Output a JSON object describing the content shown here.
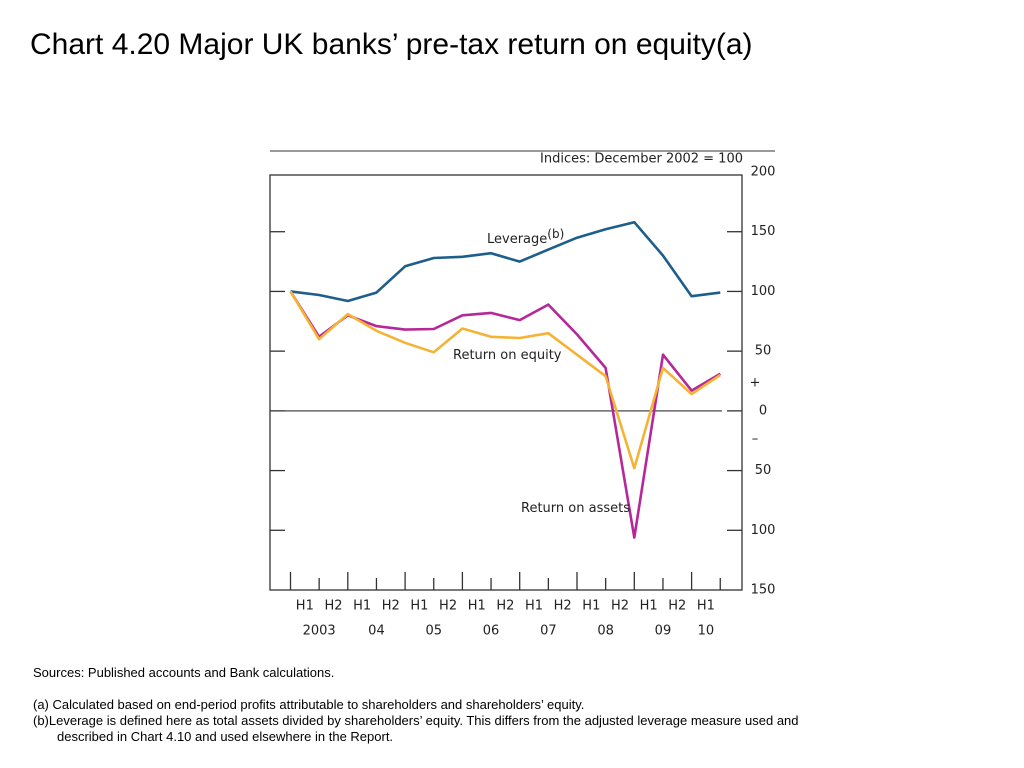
{
  "title": "Chart 4.20  Major UK banks’ pre-tax return on equity(a)",
  "chart_data": {
    "type": "line",
    "subtitle": "Indices:  December 2002 = 100",
    "categories": [
      null,
      "H1",
      "H2",
      "H1",
      "H2",
      "H1",
      "H2",
      "H1",
      "H2",
      "H1",
      "H2",
      "H1",
      "H2",
      "H1",
      "H2",
      "H1"
    ],
    "years": [
      null,
      "2003",
      null,
      "04",
      null,
      "05",
      null,
      "06",
      null,
      "07",
      null,
      "08",
      null,
      "09",
      null,
      "10"
    ],
    "series": [
      {
        "name": "Leverage",
        "name_sup": "(b)",
        "color": "#1d5f8a",
        "values": [
          100,
          97,
          92,
          99,
          121,
          128,
          129,
          132,
          125,
          135,
          145,
          152,
          158,
          130,
          96,
          99
        ]
      },
      {
        "name": "Return on equity",
        "color": "#b5289a",
        "values": [
          100,
          62,
          80,
          71,
          68,
          68.5,
          80,
          82,
          76,
          89,
          64,
          36,
          -106,
          47,
          17,
          31
        ]
      },
      {
        "name": "Return on assets",
        "color": "#f5b335",
        "values": [
          100,
          60,
          81,
          67,
          57,
          49,
          69,
          62,
          61,
          65,
          47,
          29,
          -48,
          36,
          14,
          30
        ]
      }
    ],
    "ylim": [
      -150,
      200
    ],
    "yticks": [
      {
        "value": -150,
        "label": "150"
      },
      {
        "value": -100,
        "label": "100"
      },
      {
        "value": -50,
        "label": "50"
      },
      0,
      50,
      100,
      150,
      200
    ],
    "sign_labels": [
      "+",
      "–"
    ]
  },
  "sources": "Sources:  Published accounts and Bank calculations.",
  "notes": [
    "(a)  Calculated based on end-period profits attributable to shareholders and shareholders’ equity.",
    "(b)Leverage is defined here as total assets divided by shareholders’ equity.  This differs from the adjusted leverage measure used and described in Chart 4.10 and used elsewhere in the Report."
  ]
}
